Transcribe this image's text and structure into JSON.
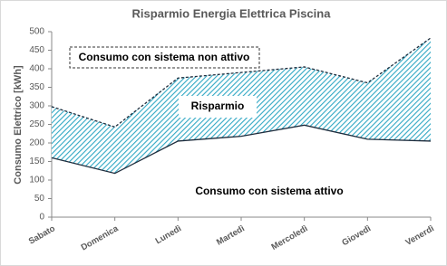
{
  "chart_data": {
    "type": "band",
    "title": "Risparmio Energia Elettrica Piscina",
    "y_label": "Consumo Elettrico [kWh]",
    "categories": [
      "Sabato",
      "Domenica",
      "Lunedì",
      "Martedì",
      "Mercoledì",
      "Giovedì",
      "Venerdì"
    ],
    "series": [
      {
        "name": "Consumo con sistema attivo",
        "color": "#1f2d3d",
        "values": [
          160,
          118,
          205,
          218,
          248,
          210,
          205
        ]
      },
      {
        "name": "Consumo con sistema non attivo",
        "color": "#1f2d3d",
        "values": [
          298,
          243,
          375,
          390,
          405,
          362,
          483
        ]
      }
    ],
    "band_label": "Risparmio",
    "band_color": "#31a8c4",
    "ylim": [
      0,
      500
    ],
    "yticks": [
      0,
      50,
      100,
      150,
      200,
      250,
      300,
      350,
      400,
      450,
      500
    ]
  }
}
